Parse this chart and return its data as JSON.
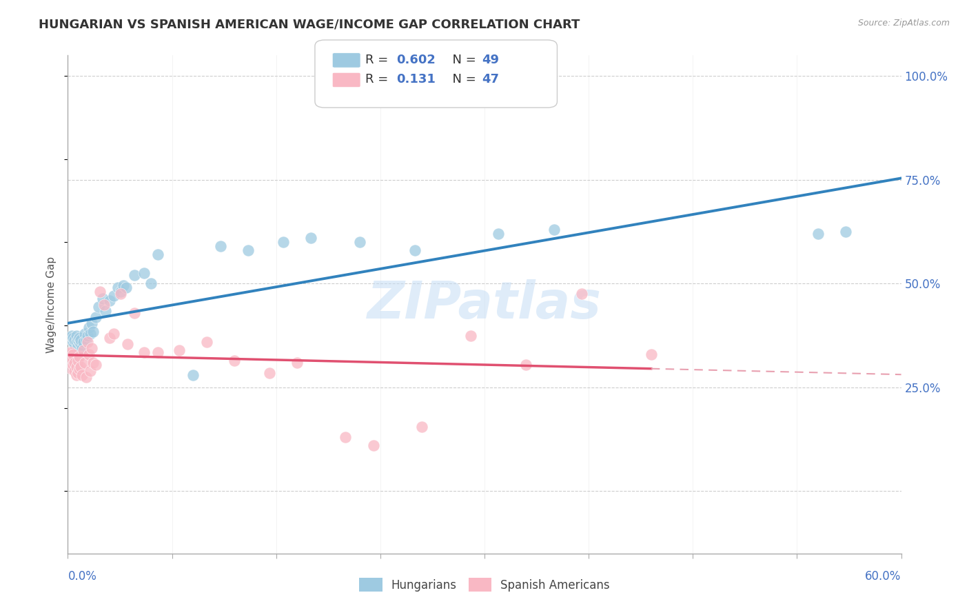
{
  "title": "HUNGARIAN VS SPANISH AMERICAN WAGE/INCOME GAP CORRELATION CHART",
  "source": "Source: ZipAtlas.com",
  "ylabel": "Wage/Income Gap",
  "xmin": 0.0,
  "xmax": 0.6,
  "ymin": -0.15,
  "ymax": 1.05,
  "blue_color": "#9ecae1",
  "pink_color": "#f9b8c4",
  "blue_line_color": "#3182bd",
  "pink_line_color": "#e05070",
  "pink_dash_color": "#e8a0b0",
  "watermark": "ZIPatlas",
  "background_color": "#ffffff",
  "grid_color": "#c8c8c8",
  "title_color": "#333333",
  "source_color": "#999999",
  "axis_label_color": "#4472c4",
  "legend_box_color": "#e8e8e8",
  "hungarians_x": [
    0.002,
    0.003,
    0.003,
    0.004,
    0.004,
    0.005,
    0.005,
    0.006,
    0.006,
    0.007,
    0.007,
    0.008,
    0.008,
    0.009,
    0.009,
    0.01,
    0.011,
    0.012,
    0.013,
    0.014,
    0.015,
    0.016,
    0.017,
    0.018,
    0.02,
    0.022,
    0.025,
    0.027,
    0.03,
    0.033,
    0.036,
    0.038,
    0.04,
    0.042,
    0.048,
    0.055,
    0.06,
    0.065,
    0.09,
    0.11,
    0.13,
    0.155,
    0.175,
    0.21,
    0.25,
    0.31,
    0.35,
    0.54,
    0.56
  ],
  "hungarians_y": [
    0.37,
    0.365,
    0.375,
    0.36,
    0.37,
    0.355,
    0.365,
    0.36,
    0.375,
    0.35,
    0.365,
    0.36,
    0.37,
    0.355,
    0.365,
    0.345,
    0.36,
    0.38,
    0.365,
    0.375,
    0.395,
    0.38,
    0.405,
    0.385,
    0.42,
    0.445,
    0.465,
    0.435,
    0.46,
    0.47,
    0.49,
    0.48,
    0.495,
    0.49,
    0.52,
    0.525,
    0.5,
    0.57,
    0.28,
    0.59,
    0.58,
    0.6,
    0.61,
    0.6,
    0.58,
    0.62,
    0.63,
    0.62,
    0.625
  ],
  "spanish_x": [
    0.001,
    0.002,
    0.002,
    0.003,
    0.003,
    0.004,
    0.004,
    0.005,
    0.005,
    0.006,
    0.006,
    0.007,
    0.007,
    0.008,
    0.008,
    0.009,
    0.01,
    0.011,
    0.012,
    0.013,
    0.014,
    0.015,
    0.016,
    0.017,
    0.018,
    0.02,
    0.023,
    0.026,
    0.03,
    0.033,
    0.038,
    0.043,
    0.048,
    0.055,
    0.065,
    0.08,
    0.1,
    0.12,
    0.145,
    0.165,
    0.2,
    0.22,
    0.255,
    0.29,
    0.33,
    0.37,
    0.42
  ],
  "spanish_y": [
    0.33,
    0.31,
    0.335,
    0.295,
    0.32,
    0.305,
    0.33,
    0.29,
    0.31,
    0.28,
    0.3,
    0.285,
    0.315,
    0.295,
    0.325,
    0.3,
    0.28,
    0.34,
    0.31,
    0.275,
    0.36,
    0.33,
    0.29,
    0.345,
    0.31,
    0.305,
    0.48,
    0.45,
    0.37,
    0.38,
    0.475,
    0.355,
    0.43,
    0.335,
    0.335,
    0.34,
    0.36,
    0.315,
    0.285,
    0.31,
    0.13,
    0.11,
    0.155,
    0.375,
    0.305,
    0.475,
    0.33
  ],
  "yticks": [
    0.0,
    0.25,
    0.5,
    0.75,
    1.0
  ],
  "ytick_labels": [
    "",
    "25.0%",
    "50.0%",
    "75.0%",
    "100.0%"
  ],
  "xtick_positions": [
    0.0,
    0.6
  ],
  "xtick_labels": [
    "0.0%",
    "60.0%"
  ]
}
